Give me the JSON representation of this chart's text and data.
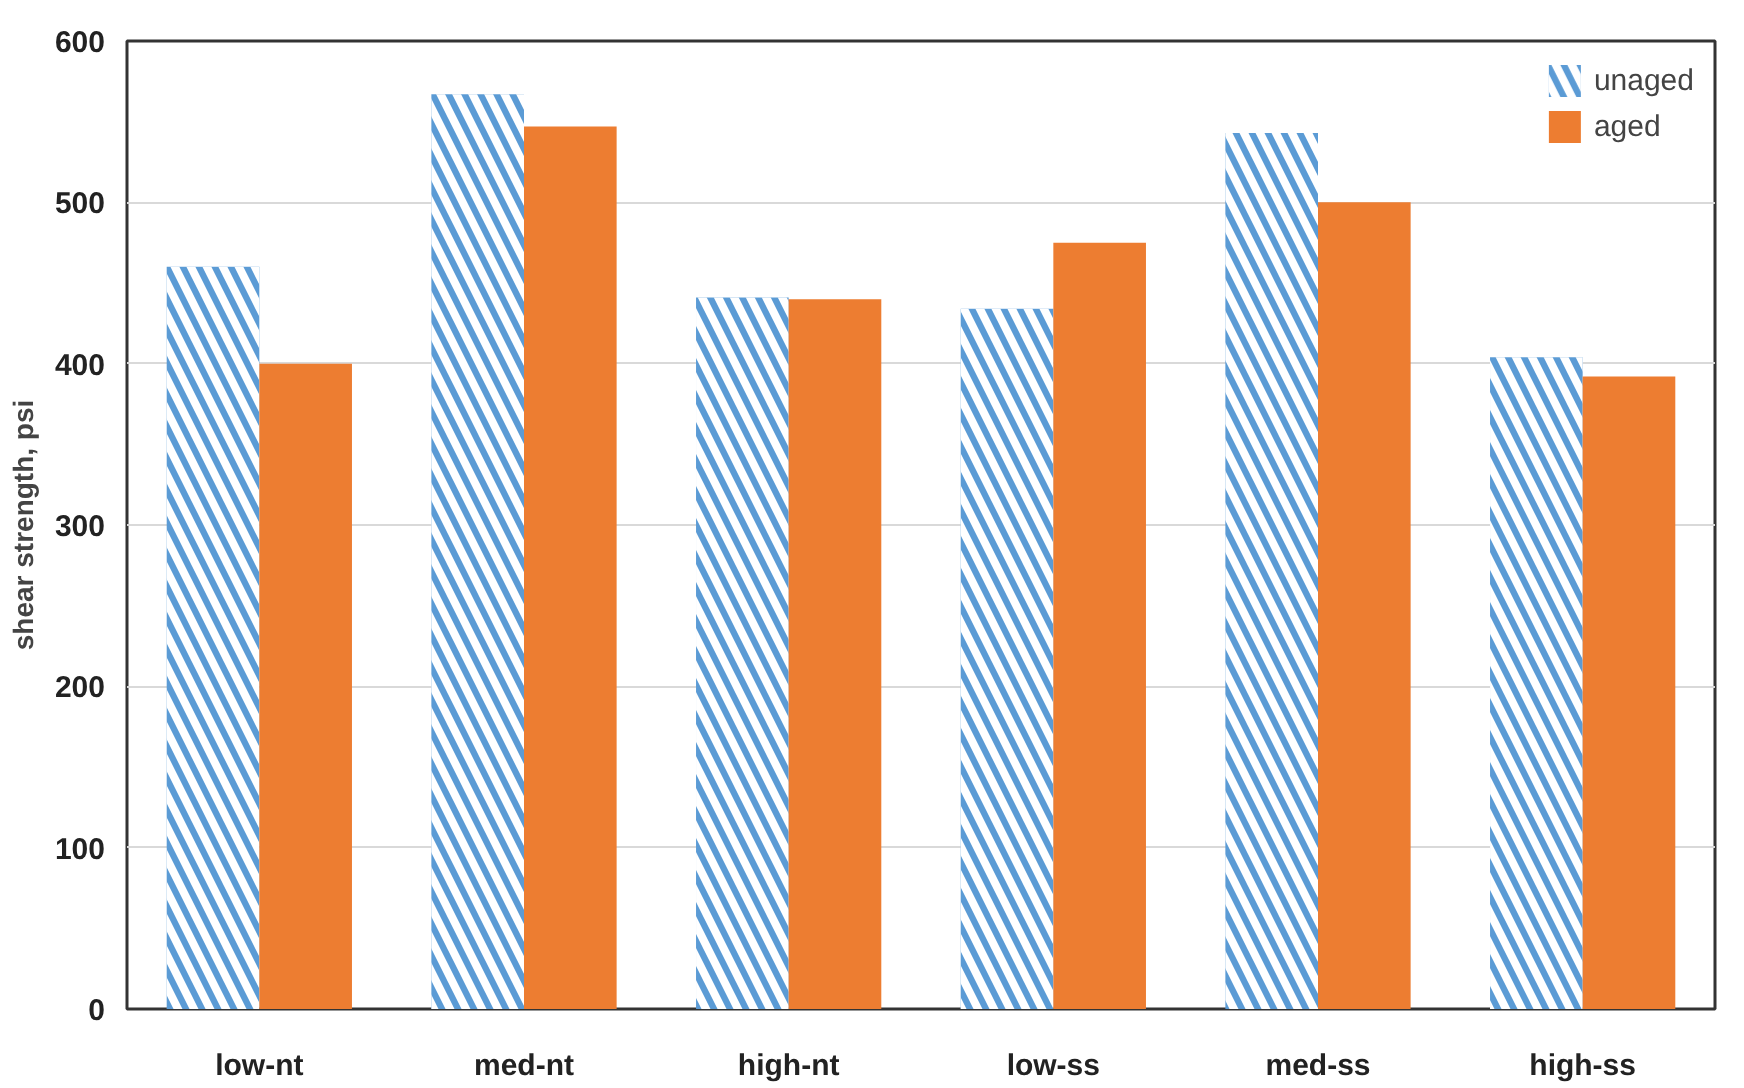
{
  "chart_data": {
    "type": "bar",
    "ylabel": "shear strength, psi",
    "categories": [
      "low-nt",
      "med-nt",
      "high-nt",
      "low-ss",
      "med-ss",
      "high-ss"
    ],
    "series": [
      {
        "name": "unaged",
        "color": "#5b9bd5",
        "values": [
          460,
          567,
          441,
          434,
          543,
          404
        ]
      },
      {
        "name": "aged",
        "color": "#ed7d31",
        "values": [
          400,
          547,
          440,
          475,
          500,
          392
        ]
      }
    ],
    "ylim": [
      0,
      600
    ],
    "yticks": [
      0,
      100,
      200,
      300,
      400,
      500,
      600
    ],
    "grid": "y",
    "legend": "top right"
  }
}
